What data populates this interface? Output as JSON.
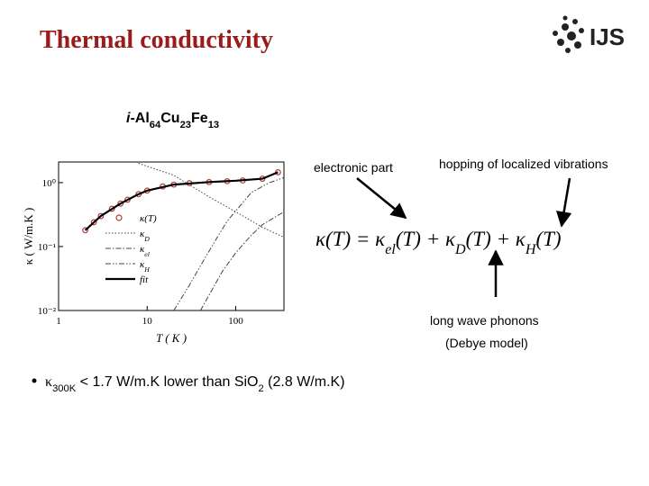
{
  "header": {
    "title": "Thermal conductivity",
    "logo": "IJS"
  },
  "compound": [
    {
      "text": "i",
      "italic": true
    },
    {
      "text": "-Al"
    },
    {
      "text": "64",
      "sub": true
    },
    {
      "text": "Cu"
    },
    {
      "text": "23",
      "sub": true
    },
    {
      "text": "Fe"
    },
    {
      "text": "13",
      "sub": true
    }
  ],
  "plot": {
    "type": "line",
    "x_label": "T ( K )",
    "y_label": "κ ( W/m.K )",
    "log_x": true,
    "log_y": true,
    "xlim": [
      1,
      350
    ],
    "ylim": [
      0.01,
      2.1
    ],
    "xticks": [
      1,
      10,
      100
    ],
    "yticks": [
      {
        "value": 1,
        "label": "10⁰"
      },
      {
        "value": 0.1,
        "label": "10⁻¹"
      },
      {
        "value": 0.01,
        "label": "10⁻²"
      }
    ],
    "series": [
      {
        "name": "κ(T)",
        "color": "#b23a3a",
        "marker": "circle",
        "x": [
          2,
          2.5,
          3,
          4,
          5,
          6,
          8,
          10,
          15,
          20,
          30,
          50,
          80,
          120,
          200,
          300
        ],
        "values": [
          0.18,
          0.24,
          0.3,
          0.39,
          0.47,
          0.54,
          0.66,
          0.75,
          0.87,
          0.93,
          0.98,
          1.02,
          1.05,
          1.08,
          1.15,
          1.45
        ]
      },
      {
        "name": {
          "base": "κ",
          "sub": "D"
        },
        "color": "#444444",
        "dash": "1.5,2",
        "x": [
          8,
          20,
          50,
          100,
          200,
          350
        ],
        "values": [
          2.0,
          1.3,
          0.6,
          0.35,
          0.2,
          0.14
        ]
      },
      {
        "name": {
          "base": "κ",
          "sub": "el"
        },
        "color": "#444444",
        "dash": "6,2,1.5,2",
        "x": [
          40,
          70,
          100,
          150,
          200,
          350
        ],
        "values": [
          0.01,
          0.04,
          0.08,
          0.15,
          0.22,
          0.35
        ]
      },
      {
        "name": {
          "base": "κ",
          "sub": "H"
        },
        "color": "#444444",
        "dash": "6,2,1.5,2,1.5,2",
        "x": [
          20,
          30,
          40,
          60,
          80,
          150,
          240,
          350
        ],
        "values": [
          0.01,
          0.025,
          0.05,
          0.13,
          0.25,
          0.7,
          1.0,
          1.2
        ]
      },
      {
        "name": "fit",
        "color": "#000000",
        "width": 2.2,
        "x": [
          2,
          3,
          5,
          8,
          10,
          20,
          50,
          100,
          200,
          300
        ],
        "values": [
          0.18,
          0.3,
          0.47,
          0.66,
          0.75,
          0.93,
          1.02,
          1.07,
          1.15,
          1.45
        ]
      }
    ]
  },
  "annotations": {
    "electronic": "electronic part",
    "hopping": "hopping of localized vibrations",
    "phonons": "long wave phonons",
    "debye": "(Debye model)"
  },
  "formula": [
    {
      "text": "κ(T) = κ"
    },
    {
      "text": "el",
      "sub": true
    },
    {
      "text": "(T) + κ"
    },
    {
      "text": "D",
      "sub": true
    },
    {
      "text": "(T) + κ"
    },
    {
      "text": "H",
      "sub": true
    },
    {
      "text": "(T)"
    }
  ],
  "bullet": [
    {
      "text": "κ"
    },
    {
      "text": "300K",
      "sub": true
    },
    {
      "text": " < 1.7 W/m.K lower than SiO"
    },
    {
      "text": "2",
      "sub": true
    },
    {
      "text": " (2.8 W/m.K)"
    }
  ]
}
